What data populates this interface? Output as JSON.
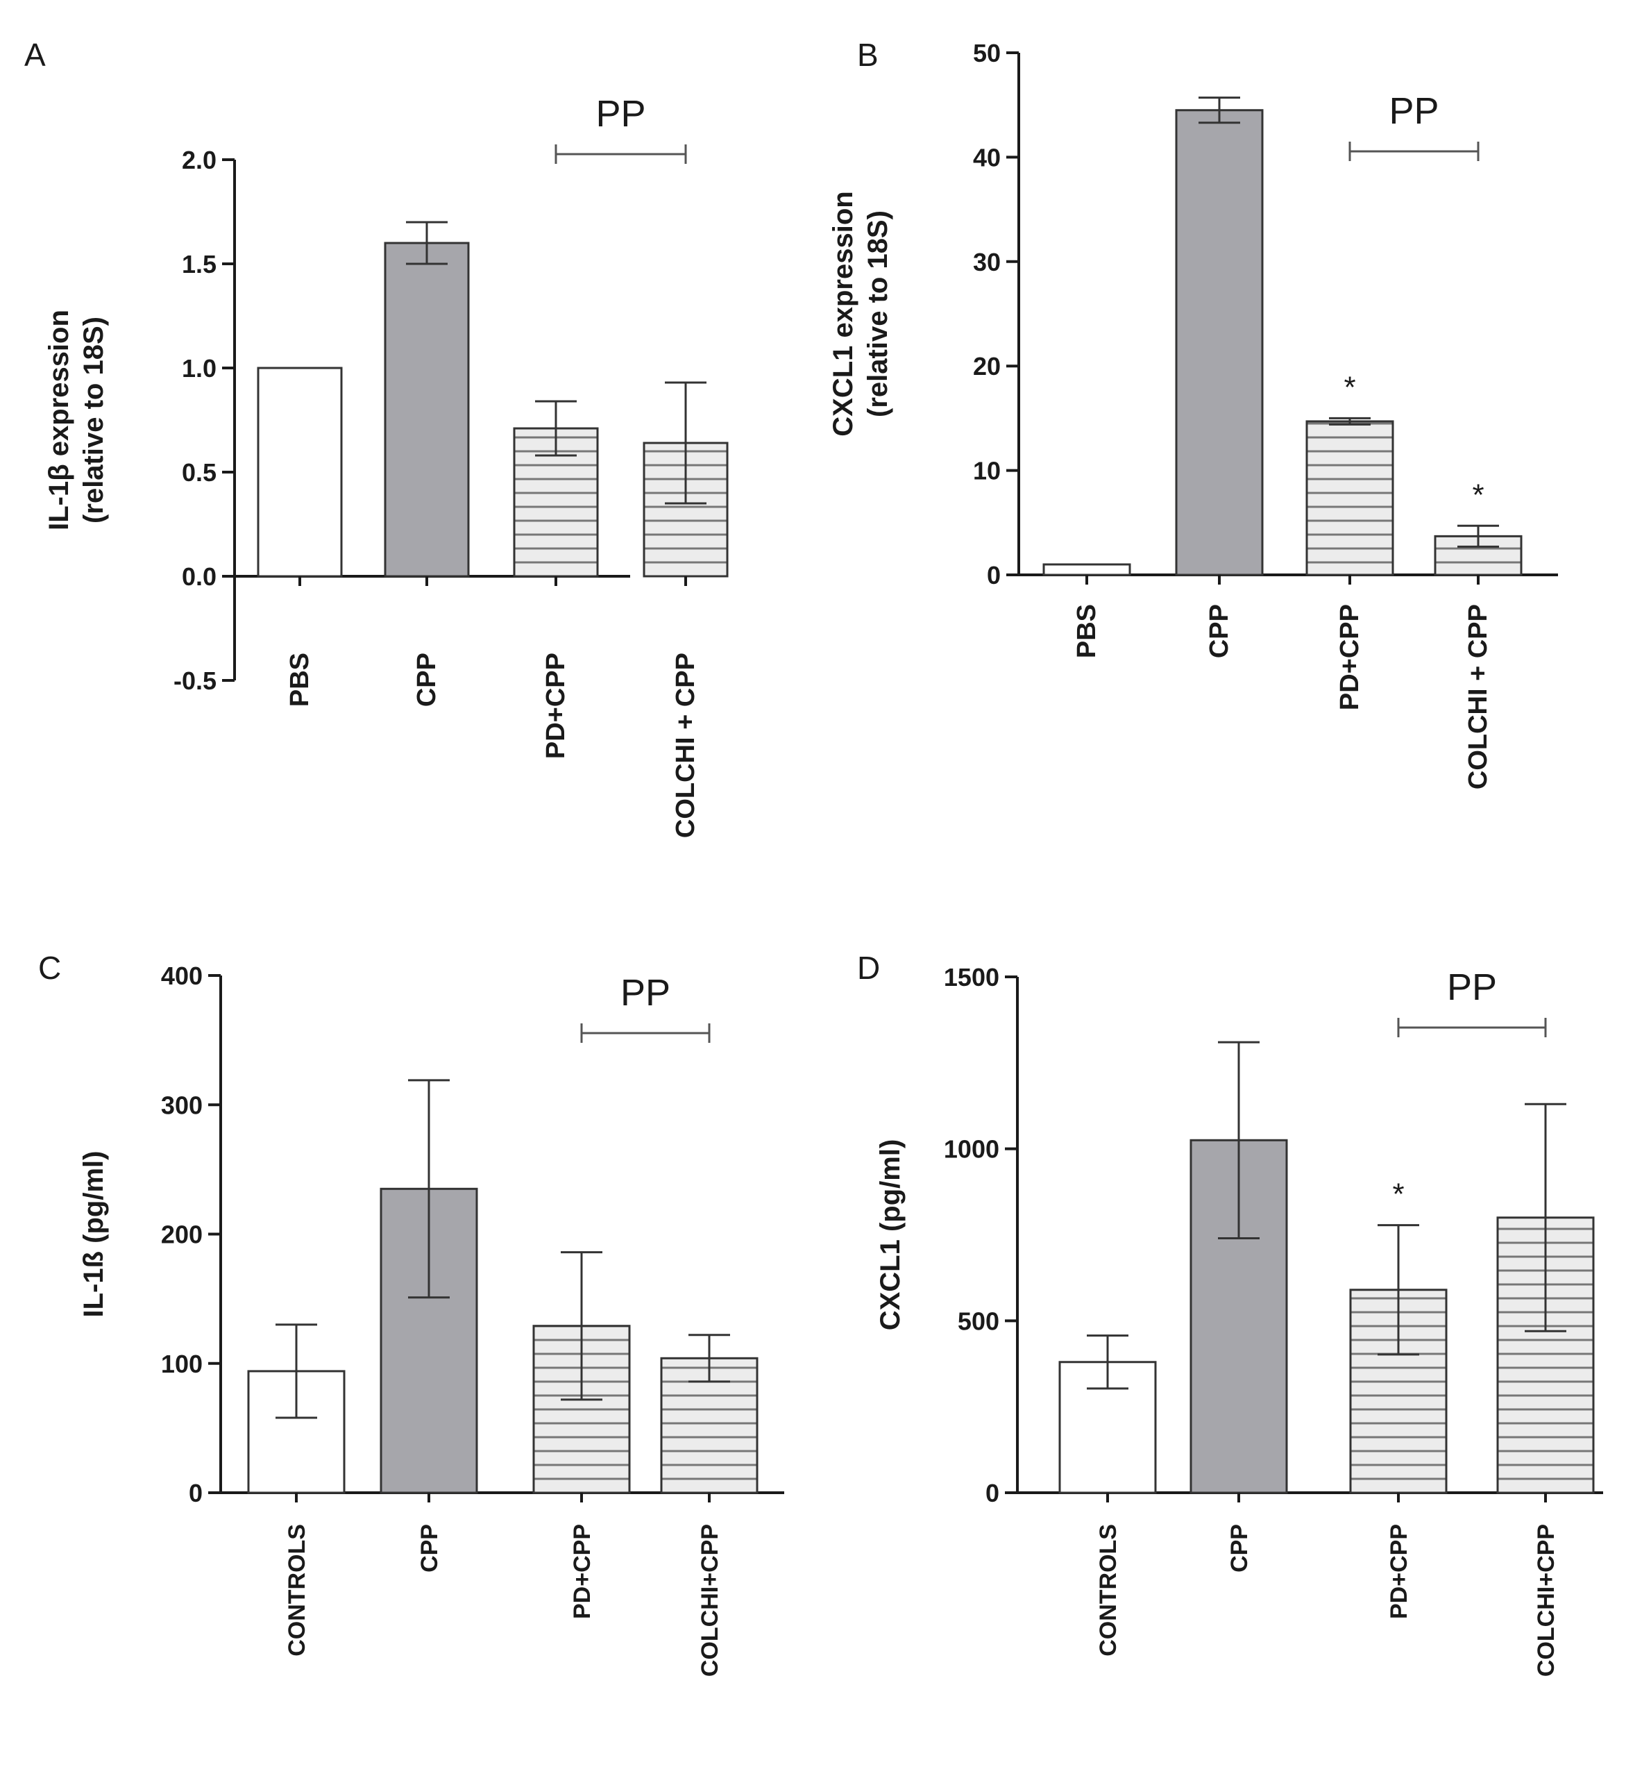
{
  "figure": {
    "style": {
      "axis_color": "#1a1a1a",
      "bar_stroke": "#333333",
      "open_fill": "#ffffff",
      "solid_fill": "#a6a6ab",
      "stripe_bg": "#ececec",
      "stripe_line": "#777777",
      "bracket_color": "#555555",
      "star_color": "#333333"
    }
  },
  "chart_data": [
    {
      "panel": "A",
      "type": "bar",
      "ylabel_line1": "IL-1β expression",
      "ylabel_line2": "(relative to 18S)",
      "categories": [
        "PBS",
        "CPP",
        "PD+CPP",
        "COLCHI + CPP"
      ],
      "values": [
        1.0,
        1.6,
        0.71,
        0.64
      ],
      "errors": [
        null,
        0.1,
        0.13,
        0.29
      ],
      "fills": [
        "open",
        "solid",
        "stripe",
        "stripe"
      ],
      "significance": [
        "",
        "",
        "",
        ""
      ],
      "ylim": [
        -0.5,
        2.0
      ],
      "yticks": [
        -0.5,
        0.0,
        0.5,
        1.0,
        1.5,
        2.0
      ],
      "ytick_labels": [
        "-0.5",
        "0.0",
        "0.5",
        "1.0",
        "1.5",
        "2.0"
      ],
      "bracket": {
        "label": "PP",
        "from": 2,
        "to": 3
      }
    },
    {
      "panel": "B",
      "type": "bar",
      "ylabel_line1": "CXCL1 expression",
      "ylabel_line2": "(relative to 18S)",
      "categories": [
        "PBS",
        "CPP",
        "PD+CPP",
        "COLCHI + CPP"
      ],
      "values": [
        1.0,
        44.5,
        14.7,
        3.7
      ],
      "errors": [
        null,
        1.2,
        0.3,
        1.0
      ],
      "fills": [
        "open",
        "solid",
        "stripe",
        "stripe"
      ],
      "significance": [
        "",
        "",
        "*",
        "*"
      ],
      "ylim": [
        0,
        50
      ],
      "yticks": [
        0,
        10,
        20,
        30,
        40,
        50
      ],
      "ytick_labels": [
        "0",
        "10",
        "20",
        "30",
        "40",
        "50"
      ],
      "bracket": {
        "label": "PP",
        "from": 2,
        "to": 3
      }
    },
    {
      "panel": "C",
      "type": "bar",
      "ylabel_line1": "IL-1ß (pg/ml)",
      "ylabel_line2": "",
      "categories": [
        "CONTROLS",
        "CPP",
        "PD+CPP",
        "COLCHI+CPP"
      ],
      "values": [
        94,
        235,
        129,
        104
      ],
      "errors": [
        36,
        84,
        57,
        18
      ],
      "fills": [
        "open",
        "solid",
        "stripe",
        "stripe"
      ],
      "significance": [
        "",
        "",
        "",
        ""
      ],
      "ylim": [
        0,
        400
      ],
      "yticks": [
        0,
        100,
        200,
        300,
        400
      ],
      "ytick_labels": [
        "0",
        "100",
        "200",
        "300",
        "400"
      ],
      "bracket": {
        "label": "PP",
        "from": 2,
        "to": 3
      }
    },
    {
      "panel": "D",
      "type": "bar",
      "ylabel_line1": "CXCL1 (pg/ml)",
      "ylabel_line2": "",
      "categories": [
        "CONTROLS",
        "CPP",
        "PD+CPP",
        "COLCHI+CPP"
      ],
      "values": [
        380,
        1025,
        590,
        800
      ],
      "errors": [
        77,
        285,
        188,
        330
      ],
      "fills": [
        "open",
        "solid",
        "stripe",
        "stripe"
      ],
      "significance": [
        "",
        "",
        "*",
        ""
      ],
      "ylim": [
        0,
        1500
      ],
      "yticks": [
        0,
        500,
        1000,
        1500
      ],
      "ytick_labels": [
        "0",
        "500",
        "1000",
        "1500"
      ],
      "bracket": {
        "label": "PP",
        "from": 2,
        "to": 3
      }
    }
  ]
}
